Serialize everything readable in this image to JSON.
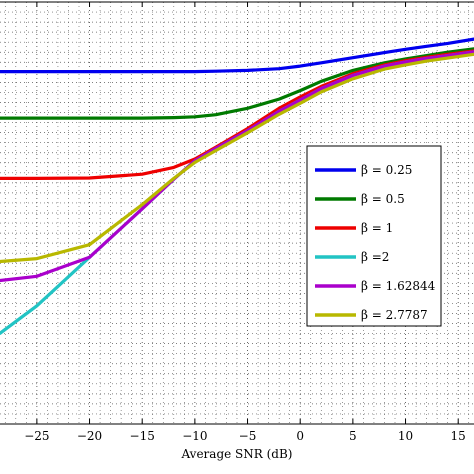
{
  "chart_data": {
    "type": "line",
    "xlabel": "Average SNR (dB)",
    "ylabel": "",
    "xlim": [
      -28.5,
      16.5
    ],
    "ylim": [
      0,
      1
    ],
    "x_ticks": [
      -25,
      -20,
      -15,
      -10,
      -5,
      0,
      5,
      10,
      15
    ],
    "x_tick_labels": [
      "−25",
      "−20",
      "−15",
      "−10",
      "−5",
      "0",
      "5",
      "10",
      "15"
    ],
    "grid": true,
    "grid_style": "dotted",
    "legend_position": "center-right",
    "x": [
      -28.5,
      -25,
      -20,
      -15,
      -12,
      -10,
      -8,
      -5,
      -2,
      0,
      2,
      5,
      8,
      10,
      12,
      14,
      16.5
    ],
    "series": [
      {
        "name": "β = 0.25",
        "color": "#0000ee",
        "values": [
          0.835,
          0.835,
          0.835,
          0.835,
          0.835,
          0.835,
          0.836,
          0.838,
          0.842,
          0.848,
          0.856,
          0.868,
          0.88,
          0.888,
          0.895,
          0.902,
          0.912
        ]
      },
      {
        "name": "β = 0.5",
        "color": "#007a00",
        "values": [
          0.725,
          0.725,
          0.725,
          0.725,
          0.726,
          0.728,
          0.733,
          0.748,
          0.77,
          0.79,
          0.812,
          0.838,
          0.856,
          0.865,
          0.873,
          0.881,
          0.889
        ]
      },
      {
        "name": "β = 1",
        "color": "#ee0000",
        "values": [
          0.582,
          0.582,
          0.583,
          0.592,
          0.608,
          0.628,
          0.656,
          0.7,
          0.748,
          0.775,
          0.8,
          0.83,
          0.851,
          0.861,
          0.869,
          0.876,
          0.884
        ]
      },
      {
        "name": "β =2",
        "color": "#22c4c4",
        "values": [
          0.215,
          0.28,
          0.395,
          0.51,
          0.58,
          0.624,
          0.653,
          0.695,
          0.741,
          0.768,
          0.795,
          0.826,
          0.848,
          0.858,
          0.866,
          0.873,
          0.882
        ]
      },
      {
        "name": "β = 1.62844",
        "color": "#aa00cc",
        "values": [
          0.34,
          0.35,
          0.395,
          0.51,
          0.58,
          0.624,
          0.653,
          0.695,
          0.741,
          0.768,
          0.795,
          0.826,
          0.848,
          0.858,
          0.866,
          0.873,
          0.882
        ]
      },
      {
        "name": "β = 2.7787",
        "color": "#b8b800",
        "values": [
          0.385,
          0.392,
          0.425,
          0.52,
          0.582,
          0.62,
          0.648,
          0.69,
          0.734,
          0.76,
          0.787,
          0.818,
          0.841,
          0.851,
          0.86,
          0.867,
          0.876
        ]
      }
    ]
  }
}
